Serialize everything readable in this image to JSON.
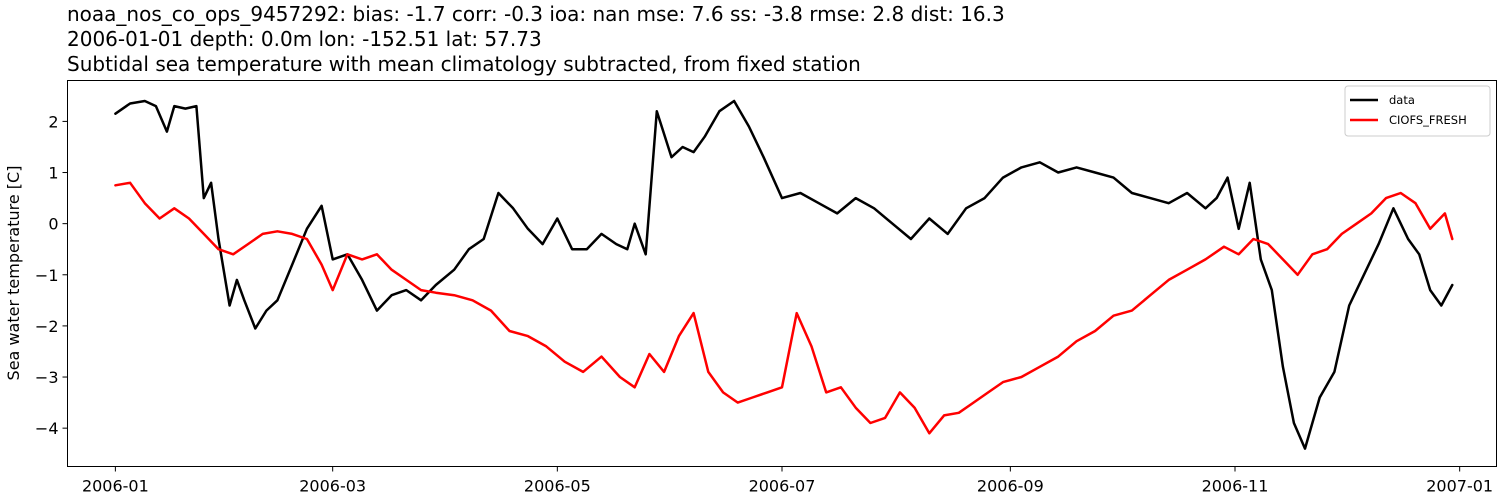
{
  "chart_data": {
    "type": "line",
    "title_lines": [
      "noaa_nos_co_ops_9457292: bias: -1.7  corr: -0.3  ioa: nan  mse: 7.6  ss: -3.8  rmse: 2.8  dist: 16.3",
      "2006-01-01 depth: 0.0m lon: -152.51 lat: 57.73",
      "Subtidal sea temperature with mean climatology subtracted, from fixed station"
    ],
    "xlabel": "",
    "ylabel": "Sea water temperature [C]",
    "xlim": [
      "2005-12-19",
      "2007-01-11"
    ],
    "ylim": [
      -4.75,
      2.8
    ],
    "x_ticks": [
      "2006-01",
      "2006-03",
      "2006-05",
      "2006-07",
      "2006-09",
      "2006-11",
      "2007-01"
    ],
    "y_ticks": [
      2,
      1,
      0,
      -1,
      -2,
      -3,
      -4
    ],
    "y_tick_labels": [
      "2",
      "1",
      "0",
      "−1",
      "−2",
      "−3",
      "−4"
    ],
    "grid": false,
    "legend_position": "top-right",
    "series": [
      {
        "name": "data",
        "color": "#000000",
        "x": [
          "2006-01-01",
          "2006-01-05",
          "2006-01-09",
          "2006-01-12",
          "2006-01-15",
          "2006-01-17",
          "2006-01-20",
          "2006-01-23",
          "2006-01-25",
          "2006-01-27",
          "2006-01-29",
          "2006-02-01",
          "2006-02-03",
          "2006-02-05",
          "2006-02-08",
          "2006-02-11",
          "2006-02-14",
          "2006-02-18",
          "2006-02-22",
          "2006-02-26",
          "2006-03-01",
          "2006-03-05",
          "2006-03-09",
          "2006-03-13",
          "2006-03-17",
          "2006-03-21",
          "2006-03-25",
          "2006-03-29",
          "2006-04-03",
          "2006-04-07",
          "2006-04-11",
          "2006-04-15",
          "2006-04-19",
          "2006-04-23",
          "2006-04-27",
          "2006-05-01",
          "2006-05-05",
          "2006-05-09",
          "2006-05-13",
          "2006-05-17",
          "2006-05-20",
          "2006-05-22",
          "2006-05-25",
          "2006-05-28",
          "2006-06-01",
          "2006-06-04",
          "2006-06-07",
          "2006-06-10",
          "2006-06-14",
          "2006-06-18",
          "2006-06-22",
          "2006-06-26",
          "2006-07-01",
          "2006-07-06",
          "2006-07-11",
          "2006-07-16",
          "2006-07-21",
          "2006-07-26",
          "2006-07-31",
          "2006-08-05",
          "2006-08-10",
          "2006-08-15",
          "2006-08-20",
          "2006-08-25",
          "2006-08-30",
          "2006-09-04",
          "2006-09-09",
          "2006-09-14",
          "2006-09-19",
          "2006-09-24",
          "2006-09-29",
          "2006-10-04",
          "2006-10-09",
          "2006-10-14",
          "2006-10-19",
          "2006-10-24",
          "2006-10-27",
          "2006-10-30",
          "2006-11-02",
          "2006-11-05",
          "2006-11-08",
          "2006-11-11",
          "2006-11-14",
          "2006-11-17",
          "2006-11-20",
          "2006-11-24",
          "2006-11-28",
          "2006-12-02",
          "2006-12-06",
          "2006-12-10",
          "2006-12-14",
          "2006-12-18",
          "2006-12-21",
          "2006-12-24",
          "2006-12-27",
          "2006-12-30"
        ],
        "y": [
          2.15,
          2.35,
          2.4,
          2.3,
          1.8,
          2.3,
          2.25,
          2.3,
          0.5,
          0.8,
          -0.3,
          -1.6,
          -1.1,
          -1.5,
          -2.05,
          -1.7,
          -1.5,
          -0.8,
          -0.1,
          0.35,
          -0.7,
          -0.6,
          -1.1,
          -1.7,
          -1.4,
          -1.3,
          -1.5,
          -1.2,
          -0.9,
          -0.5,
          -0.3,
          0.6,
          0.3,
          -0.1,
          -0.4,
          0.1,
          -0.5,
          -0.5,
          -0.2,
          -0.4,
          -0.5,
          0.0,
          -0.6,
          2.2,
          1.3,
          1.5,
          1.4,
          1.7,
          2.2,
          2.4,
          1.9,
          1.3,
          0.5,
          0.6,
          0.4,
          0.2,
          0.5,
          0.3,
          0.0,
          -0.3,
          0.1,
          -0.2,
          0.3,
          0.5,
          0.9,
          1.1,
          1.2,
          1.0,
          1.1,
          1.0,
          0.9,
          0.6,
          0.5,
          0.4,
          0.6,
          0.3,
          0.5,
          0.9,
          -0.1,
          0.8,
          -0.7,
          -1.3,
          -2.8,
          -3.9,
          -4.4,
          -3.4,
          -2.9,
          -1.6,
          -1.0,
          -0.4,
          0.3,
          -0.3,
          -0.6,
          -1.3,
          -1.6,
          -1.2
        ]
      },
      {
        "name": "CIOFS_FRESH",
        "color": "#ff0000",
        "x": [
          "2006-01-01",
          "2006-01-05",
          "2006-01-09",
          "2006-01-13",
          "2006-01-17",
          "2006-01-21",
          "2006-01-25",
          "2006-01-29",
          "2006-02-02",
          "2006-02-06",
          "2006-02-10",
          "2006-02-14",
          "2006-02-18",
          "2006-02-22",
          "2006-02-26",
          "2006-03-01",
          "2006-03-05",
          "2006-03-09",
          "2006-03-13",
          "2006-03-17",
          "2006-03-21",
          "2006-03-25",
          "2006-03-29",
          "2006-04-03",
          "2006-04-08",
          "2006-04-13",
          "2006-04-18",
          "2006-04-23",
          "2006-04-28",
          "2006-05-03",
          "2006-05-08",
          "2006-05-13",
          "2006-05-18",
          "2006-05-22",
          "2006-05-26",
          "2006-05-30",
          "2006-06-03",
          "2006-06-07",
          "2006-06-11",
          "2006-06-15",
          "2006-06-19",
          "2006-06-23",
          "2006-06-27",
          "2006-07-01",
          "2006-07-05",
          "2006-07-09",
          "2006-07-13",
          "2006-07-17",
          "2006-07-21",
          "2006-07-25",
          "2006-07-29",
          "2006-08-02",
          "2006-08-06",
          "2006-08-10",
          "2006-08-14",
          "2006-08-18",
          "2006-08-22",
          "2006-08-26",
          "2006-08-30",
          "2006-09-04",
          "2006-09-09",
          "2006-09-14",
          "2006-09-19",
          "2006-09-24",
          "2006-09-29",
          "2006-10-04",
          "2006-10-09",
          "2006-10-14",
          "2006-10-19",
          "2006-10-24",
          "2006-10-29",
          "2006-11-02",
          "2006-11-06",
          "2006-11-10",
          "2006-11-14",
          "2006-11-18",
          "2006-11-22",
          "2006-11-26",
          "2006-11-30",
          "2006-12-04",
          "2006-12-08",
          "2006-12-12",
          "2006-12-16",
          "2006-12-20",
          "2006-12-24",
          "2006-12-28",
          "2006-12-30"
        ],
        "y": [
          0.75,
          0.8,
          0.4,
          0.1,
          0.3,
          0.1,
          -0.2,
          -0.5,
          -0.6,
          -0.4,
          -0.2,
          -0.15,
          -0.2,
          -0.3,
          -0.8,
          -1.3,
          -0.6,
          -0.7,
          -0.6,
          -0.9,
          -1.1,
          -1.3,
          -1.35,
          -1.4,
          -1.5,
          -1.7,
          -2.1,
          -2.2,
          -2.4,
          -2.7,
          -2.9,
          -2.6,
          -3.0,
          -3.2,
          -2.55,
          -2.9,
          -2.2,
          -1.75,
          -2.9,
          -3.3,
          -3.5,
          -3.4,
          -3.3,
          -3.2,
          -1.75,
          -2.4,
          -3.3,
          -3.2,
          -3.6,
          -3.9,
          -3.8,
          -3.3,
          -3.6,
          -4.1,
          -3.75,
          -3.7,
          -3.5,
          -3.3,
          -3.1,
          -3.0,
          -2.8,
          -2.6,
          -2.3,
          -2.1,
          -1.8,
          -1.7,
          -1.4,
          -1.1,
          -0.9,
          -0.7,
          -0.45,
          -0.6,
          -0.3,
          -0.4,
          -0.7,
          -1.0,
          -0.6,
          -0.5,
          -0.2,
          0.0,
          0.2,
          0.5,
          0.6,
          0.4,
          -0.1,
          0.2,
          -0.3
        ]
      }
    ]
  }
}
